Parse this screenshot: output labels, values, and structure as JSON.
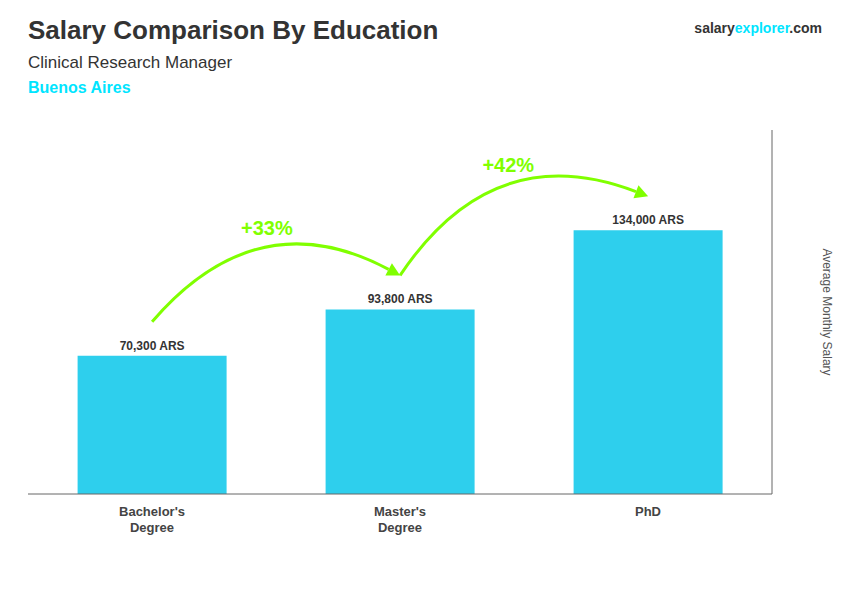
{
  "chart_data": {
    "type": "bar",
    "title": "Salary Comparison By Education",
    "subtitle": "Clinical Research Manager",
    "y_label": "Average Monthly Salary",
    "categories": [
      "Bachelor's\nDegree",
      "Master's\nDegree",
      "PhD"
    ],
    "values": [
      70300,
      93800,
      134000
    ],
    "value_labels": [
      "70,300 ARS",
      "93,800 ARS",
      "134,000 ARS"
    ],
    "data_labels": true,
    "color": "#2ECFED",
    "ylim": [
      0,
      185000
    ],
    "tick_labels": "x",
    "grid": false,
    "annotations": [
      {
        "text": "Buenos Aires",
        "color": "#00E5FF"
      },
      {
        "text": "+33%",
        "from": "Bachelor's\nDegree",
        "to": "Master's\nDegree",
        "color": "#80FF00"
      },
      {
        "text": "+42%",
        "from": "Master's\nDegree",
        "to": "PhD",
        "color": "#80FF00"
      }
    ],
    "watermark": [
      {
        "text": "salary"
      },
      {
        "text": "explorer",
        "color": "#00E5FF"
      },
      {
        "text": ".com"
      }
    ]
  }
}
